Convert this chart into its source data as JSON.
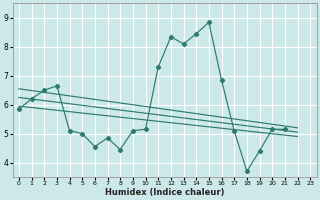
{
  "title": "",
  "xlabel": "Humidex (Indice chaleur)",
  "bg_color": "#cce8e8",
  "line_color": "#2d7a70",
  "grid_color": "#ffffff",
  "xlim": [
    -0.5,
    23.5
  ],
  "ylim": [
    3.5,
    9.5
  ],
  "xticks": [
    0,
    1,
    2,
    3,
    4,
    5,
    6,
    7,
    8,
    9,
    10,
    11,
    12,
    13,
    14,
    15,
    16,
    17,
    18,
    19,
    20,
    21,
    22,
    23
  ],
  "yticks": [
    4,
    5,
    6,
    7,
    8,
    9
  ],
  "line1_x": [
    0,
    1,
    2,
    3,
    4,
    5,
    6,
    7,
    8,
    9,
    10,
    11,
    12,
    13,
    14,
    15,
    16,
    17,
    18,
    19,
    20,
    21,
    22
  ],
  "line1_y": [
    5.85,
    6.2,
    6.5,
    6.65,
    5.1,
    5.0,
    4.55,
    4.85,
    4.45,
    5.1,
    5.15,
    7.3,
    8.35,
    8.1,
    8.45,
    8.85,
    6.85,
    5.1,
    3.7,
    4.4,
    5.15,
    5.15,
    null
  ],
  "trend_lines": [
    {
      "x0": 0,
      "y0": 6.55,
      "x1": 22,
      "y1": 5.2
    },
    {
      "x0": 0,
      "y0": 6.25,
      "x1": 22,
      "y1": 5.05
    },
    {
      "x0": 0,
      "y0": 5.95,
      "x1": 22,
      "y1": 4.9
    }
  ]
}
